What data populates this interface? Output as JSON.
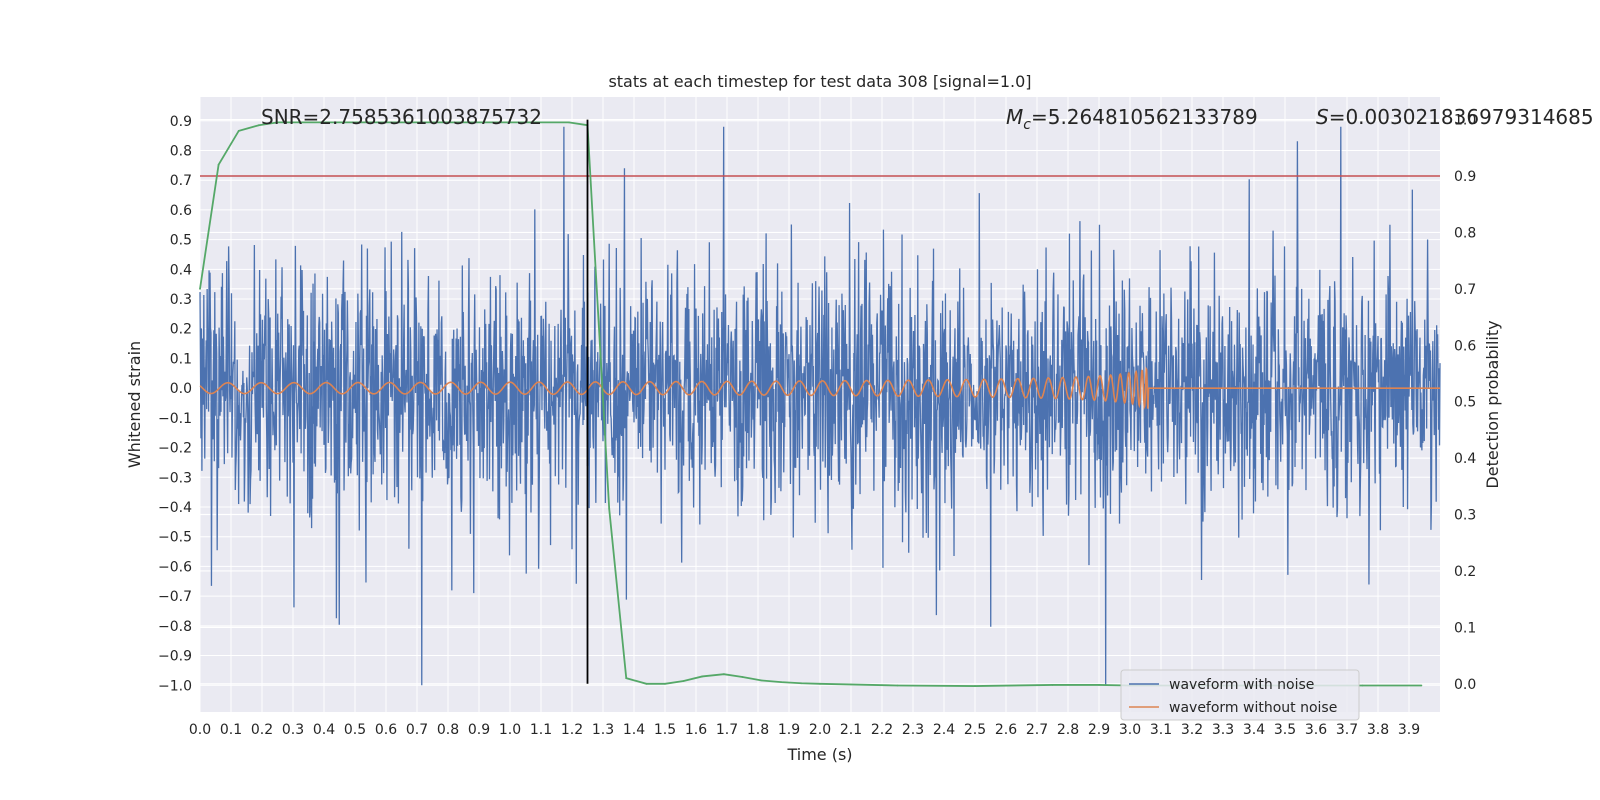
{
  "chart_data": {
    "type": "line",
    "title": "stats at each timestep for test data 308 [signal=1.0]",
    "xlabel": "Time (s)",
    "ylabel": "Whitened strain",
    "y2label": "Detection probability",
    "xlim": [
      0.0,
      4.0
    ],
    "ylim": [
      -1.09,
      0.98
    ],
    "y2lim": [
      -0.05,
      1.04
    ],
    "xticks": [
      "0.0",
      "0.1",
      "0.2",
      "0.3",
      "0.4",
      "0.5",
      "0.6",
      "0.7",
      "0.8",
      "0.9",
      "1.0",
      "1.1",
      "1.2",
      "1.3",
      "1.4",
      "1.5",
      "1.6",
      "1.7",
      "1.8",
      "1.9",
      "2.0",
      "2.1",
      "2.2",
      "2.3",
      "2.4",
      "2.5",
      "2.6",
      "2.7",
      "2.8",
      "2.9",
      "3.0",
      "3.1",
      "3.2",
      "3.3",
      "3.4",
      "3.5",
      "3.6",
      "3.7",
      "3.8",
      "3.9"
    ],
    "yticks": [
      "0.9",
      "0.8",
      "0.7",
      "0.6",
      "0.5",
      "0.4",
      "0.3",
      "0.2",
      "0.1",
      "0.0",
      "−0.1",
      "−0.2",
      "−0.3",
      "−0.4",
      "−0.5",
      "−0.6",
      "−0.7",
      "−0.8",
      "−0.9",
      "−1.0"
    ],
    "y2ticks": [
      "1.0",
      "0.9",
      "0.8",
      "0.7",
      "0.6",
      "0.5",
      "0.4",
      "0.3",
      "0.2",
      "0.1",
      "0.0"
    ],
    "annotations": {
      "snr": "SNR=2.7585361003875732",
      "mc_symbol": "M",
      "mc_sub": "c",
      "mc_value": "=5.264810562133789",
      "s_symbol": "S",
      "s_value": "=0.003021836979314685"
    },
    "threshold_line": {
      "value": 0.9,
      "axis": "y2",
      "color": "#c44e52"
    },
    "vertical_marker": {
      "x": 1.25,
      "color": "#000000"
    },
    "merger_time": 3.06,
    "series": [
      {
        "name": "waveform with noise",
        "color": "#4c72b0",
        "axis": "y",
        "description": "whitened noisy strain, roughly ±0.5 with spikes up to 0.88 and down to −1.0"
      },
      {
        "name": "waveform without noise",
        "color": "#dd8452",
        "axis": "y",
        "description": "chirp signal, amplitude rising to ~0.07 before merger at 3.06 s, then flat 0"
      },
      {
        "name": "Detection probability",
        "color": "#55a868",
        "axis": "y2",
        "x": [
          0.0,
          0.06,
          0.125,
          0.19,
          0.25,
          0.4,
          0.6,
          0.8,
          1.0,
          1.19,
          1.25,
          1.32,
          1.375,
          1.44,
          1.5,
          1.56,
          1.62,
          1.69,
          1.75,
          1.81,
          1.875,
          1.94,
          2.0,
          2.25,
          2.5,
          2.75,
          2.9,
          3.0,
          3.25,
          3.5,
          3.75,
          3.94
        ],
        "values": [
          0.7,
          0.92,
          0.98,
          0.99,
          0.995,
          0.995,
          0.995,
          0.995,
          0.995,
          0.995,
          0.99,
          0.31,
          0.01,
          0.0,
          0.0,
          0.005,
          0.013,
          0.017,
          0.012,
          0.006,
          0.003,
          0.001,
          0.0,
          -0.003,
          -0.004,
          -0.002,
          -0.002,
          -0.003,
          -0.003,
          -0.003,
          -0.003,
          -0.003
        ]
      }
    ],
    "legend": {
      "placement": "lower-right",
      "entries": [
        "waveform with noise",
        "waveform without noise"
      ]
    }
  }
}
